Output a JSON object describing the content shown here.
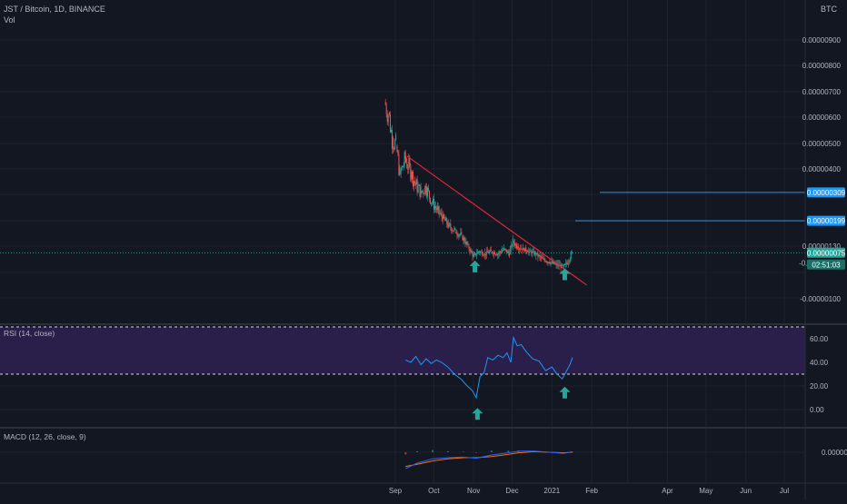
{
  "header": {
    "title": "JST / Bitcoin, 1D, BINANCE",
    "sub_title": "Vol",
    "currency": "BTC"
  },
  "colors": {
    "background": "#131722",
    "grid": "#1e222d",
    "candle_up": "#26a69a",
    "candle_down": "#ef5350",
    "trendline": "#e0283a",
    "hline": "#2196f3",
    "current_price": "#26a69a",
    "rsi_line": "#2196f3",
    "rsi_band": "#2a1f4a",
    "macd_line": "#2962ff",
    "signal_line": "#ff6d00",
    "arrow": "#26a69a"
  },
  "panes": {
    "rsi_title": "RSI (14, close)",
    "macd_title": "MACD (12, 26, close, 9)"
  },
  "price_axis_labels": [
    "0.00000900",
    "0.00000800",
    "0.00000700",
    "0.00000600",
    "0.00000500",
    "0.00000400",
    "0.00000130",
    "-0.00000100"
  ],
  "price_tags": {
    "hline_upper": "0.00000309",
    "hline_lower": "0.00000199",
    "current": "0.00000075",
    "countdown": "02:51:03",
    "overlap_hidden": "-0.00000000"
  },
  "rsi_axis_labels": [
    "60.00",
    "40.00",
    "20.00",
    "0.00"
  ],
  "macd_axis_labels": [
    "0.00000000"
  ],
  "time_axis_labels": [
    "Sep",
    "Oct",
    "Nov",
    "Dec",
    "2021",
    "Feb",
    "Apr",
    "May",
    "Jun",
    "Jul"
  ],
  "chart_data": {
    "type": "candlestick",
    "symbol": "JST / Bitcoin",
    "timeframe": "1D",
    "exchange": "BINANCE",
    "price_series": {
      "name": "close",
      "x_range": [
        "2020-08-24",
        "2021-01-17"
      ],
      "points": [
        [
          "2020-08-24",
          6.6e-06
        ],
        [
          "2020-08-27",
          6.2e-06
        ],
        [
          "2020-08-30",
          5.2e-06
        ],
        [
          "2020-09-02",
          4.9e-06
        ],
        [
          "2020-09-05",
          3.8e-06
        ],
        [
          "2020-09-09",
          4.4e-06
        ],
        [
          "2020-09-13",
          3.9e-06
        ],
        [
          "2020-09-17",
          3.4e-06
        ],
        [
          "2020-09-21",
          3.1e-06
        ],
        [
          "2020-09-25",
          3.3e-06
        ],
        [
          "2020-09-30",
          2.7e-06
        ],
        [
          "2020-10-04",
          2.4e-06
        ],
        [
          "2020-10-08",
          2.1e-06
        ],
        [
          "2020-10-13",
          1.8e-06
        ],
        [
          "2020-10-18",
          1.6e-06
        ],
        [
          "2020-10-23",
          1.4e-06
        ],
        [
          "2020-10-28",
          1e-06
        ],
        [
          "2020-11-01",
          6e-07
        ],
        [
          "2020-11-05",
          8e-07
        ],
        [
          "2020-11-10",
          7e-07
        ],
        [
          "2020-11-15",
          8e-07
        ],
        [
          "2020-11-20",
          7e-07
        ],
        [
          "2020-11-25",
          9e-07
        ],
        [
          "2020-11-29",
          7e-07
        ],
        [
          "2020-12-02",
          1.2e-06
        ],
        [
          "2020-12-05",
          1e-06
        ],
        [
          "2020-12-10",
          9e-07
        ],
        [
          "2020-12-15",
          8e-07
        ],
        [
          "2020-12-20",
          7e-07
        ],
        [
          "2020-12-25",
          5e-07
        ],
        [
          "2020-12-30",
          4e-07
        ],
        [
          "2021-01-04",
          3e-07
        ],
        [
          "2021-01-10",
          2e-07
        ],
        [
          "2021-01-14",
          4e-07
        ],
        [
          "2021-01-17",
          7.5e-07
        ]
      ]
    },
    "trendline": {
      "from": [
        "2020-09-10",
        4.5e-06
      ],
      "to": [
        "2021-01-28",
        -5e-07
      ]
    },
    "horizontal_lines": [
      3.09e-06,
      1.99e-06
    ],
    "current_price": 7.5e-07,
    "rsi": {
      "period": 14,
      "overbought": 70,
      "oversold": 30,
      "points": [
        [
          "2020-09-09",
          42
        ],
        [
          "2020-09-13",
          40
        ],
        [
          "2020-09-17",
          45
        ],
        [
          "2020-09-21",
          38
        ],
        [
          "2020-09-25",
          43
        ],
        [
          "2020-09-29",
          39
        ],
        [
          "2020-10-03",
          42
        ],
        [
          "2020-10-07",
          40
        ],
        [
          "2020-10-12",
          36
        ],
        [
          "2020-10-17",
          30
        ],
        [
          "2020-10-22",
          26
        ],
        [
          "2020-10-27",
          20
        ],
        [
          "2020-10-31",
          16
        ],
        [
          "2020-11-03",
          10
        ],
        [
          "2020-11-06",
          28
        ],
        [
          "2020-11-09",
          31
        ],
        [
          "2020-11-12",
          44
        ],
        [
          "2020-11-16",
          42
        ],
        [
          "2020-11-20",
          46
        ],
        [
          "2020-11-24",
          44
        ],
        [
          "2020-11-27",
          48
        ],
        [
          "2020-11-30",
          40
        ],
        [
          "2020-12-02",
          61
        ],
        [
          "2020-12-05",
          54
        ],
        [
          "2020-12-08",
          55
        ],
        [
          "2020-12-12",
          49
        ],
        [
          "2020-12-17",
          43
        ],
        [
          "2020-12-22",
          41
        ],
        [
          "2020-12-27",
          33
        ],
        [
          "2021-01-01",
          36
        ],
        [
          "2021-01-05",
          30
        ],
        [
          "2021-01-09",
          26
        ],
        [
          "2021-01-12",
          32
        ],
        [
          "2021-01-15",
          38
        ],
        [
          "2021-01-17",
          44
        ]
      ]
    },
    "macd": {
      "params": [
        12,
        26,
        9
      ],
      "macd_line": [
        [
          "2020-09-09",
          -3e-07
        ],
        [
          "2020-09-18",
          -2e-07
        ],
        [
          "2020-09-30",
          -1.2e-07
        ],
        [
          "2020-10-12",
          -1e-07
        ],
        [
          "2020-10-24",
          -9e-08
        ],
        [
          "2020-11-03",
          -1.1e-07
        ],
        [
          "2020-11-15",
          -5e-08
        ],
        [
          "2020-11-28",
          -1e-08
        ],
        [
          "2020-12-06",
          2e-08
        ],
        [
          "2020-12-18",
          2e-08
        ],
        [
          "2020-12-30",
          0.0
        ],
        [
          "2021-01-10",
          -2e-08
        ],
        [
          "2021-01-17",
          1e-08
        ]
      ],
      "signal_line": [
        [
          "2020-09-09",
          -2.6e-07
        ],
        [
          "2020-09-18",
          -2.2e-07
        ],
        [
          "2020-09-30",
          -1.6e-07
        ],
        [
          "2020-10-12",
          -1.2e-07
        ],
        [
          "2020-10-24",
          -1e-07
        ],
        [
          "2020-11-03",
          -1e-07
        ],
        [
          "2020-11-15",
          -8e-08
        ],
        [
          "2020-11-28",
          -4e-08
        ],
        [
          "2020-12-06",
          -1e-08
        ],
        [
          "2020-12-18",
          1e-08
        ],
        [
          "2020-12-30",
          0.0
        ],
        [
          "2021-01-10",
          -1e-08
        ],
        [
          "2021-01-17",
          0.0
        ]
      ]
    },
    "annotations": [
      {
        "type": "arrow-up",
        "pane": "price",
        "date": "2020-11-02",
        "price": 2e-07
      },
      {
        "type": "arrow-up",
        "pane": "price",
        "date": "2021-01-11",
        "price": -1e-07
      },
      {
        "type": "arrow-up",
        "pane": "rsi",
        "date": "2020-11-04",
        "value": -4
      },
      {
        "type": "arrow-up",
        "pane": "rsi",
        "date": "2021-01-11",
        "value": 14
      }
    ]
  }
}
